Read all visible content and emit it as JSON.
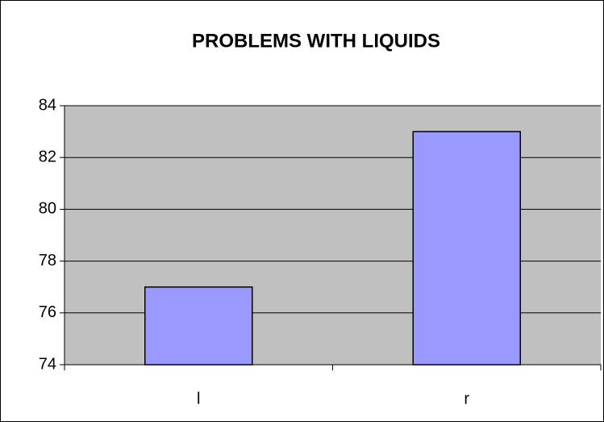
{
  "chart_data": {
    "type": "bar",
    "title": "PROBLEMS WITH LIQUIDS",
    "categories": [
      "l",
      "r"
    ],
    "values": [
      77,
      83
    ],
    "color": "#9999ff",
    "ylim": [
      74,
      84
    ],
    "yticks": [
      74,
      76,
      78,
      80,
      82,
      84
    ],
    "grid": true
  }
}
